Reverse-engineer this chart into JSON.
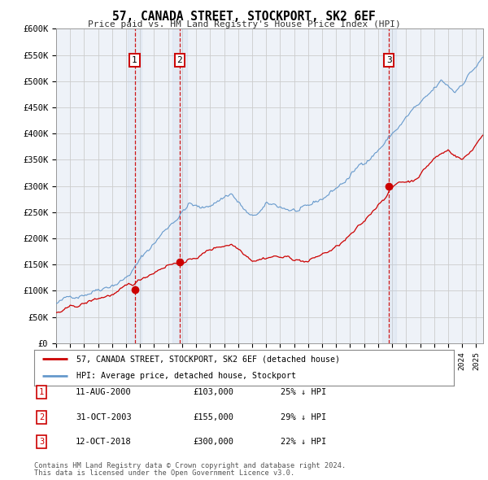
{
  "title": "57, CANADA STREET, STOCKPORT, SK2 6EF",
  "subtitle": "Price paid vs. HM Land Registry's House Price Index (HPI)",
  "ylim": [
    0,
    600000
  ],
  "yticks": [
    0,
    50000,
    100000,
    150000,
    200000,
    250000,
    300000,
    350000,
    400000,
    450000,
    500000,
    550000,
    600000
  ],
  "ytick_labels": [
    "£0",
    "£50K",
    "£100K",
    "£150K",
    "£200K",
    "£250K",
    "£300K",
    "£350K",
    "£400K",
    "£450K",
    "£500K",
    "£550K",
    "£600K"
  ],
  "xlim_start": 1995.0,
  "xlim_end": 2025.5,
  "sale_dates": [
    2000.61,
    2003.83,
    2018.78
  ],
  "sale_prices": [
    103000,
    155000,
    300000
  ],
  "sale_labels": [
    "1",
    "2",
    "3"
  ],
  "sale_date_strs": [
    "11-AUG-2000",
    "31-OCT-2003",
    "12-OCT-2018"
  ],
  "sale_pct": [
    "25%",
    "29%",
    "22%"
  ],
  "legend_line1": "57, CANADA STREET, STOCKPORT, SK2 6EF (detached house)",
  "legend_line2": "HPI: Average price, detached house, Stockport",
  "footer1": "Contains HM Land Registry data © Crown copyright and database right 2024.",
  "footer2": "This data is licensed under the Open Government Licence v3.0.",
  "property_color": "#cc0000",
  "hpi_color": "#6699cc",
  "grid_color": "#cccccc",
  "background_color": "#ffffff",
  "chart_bg": "#eef2f8"
}
